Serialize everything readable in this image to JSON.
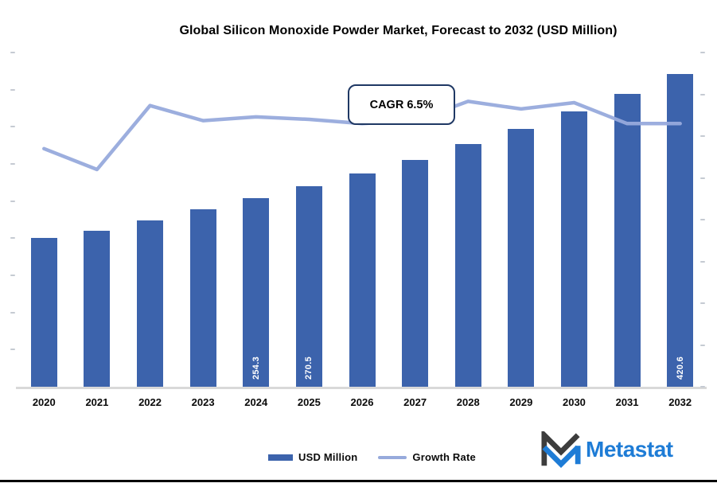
{
  "title": "Global Silicon Monoxide Powder Market, Forecast to 2032 (USD Million)",
  "callout": "CAGR 6.5%",
  "legend": {
    "bar_label": "USD Million",
    "line_label": "Growth Rate"
  },
  "brand": "Metastat",
  "colors": {
    "bar": "#3C63AC",
    "line": "#97AADC",
    "callout_border": "#1F3864",
    "axis": "#D9D9D9",
    "brand_blue": "#1E7CD6",
    "brand_dark": "#3D3D3D",
    "bar_label_text": "#FFFFFF"
  },
  "chart_data": {
    "type": "bar",
    "subtype": "combo-bar-line-dual-axis",
    "title": "Global Silicon Monoxide Powder Market, Forecast to 2032 (USD Million)",
    "categories": [
      "2020",
      "2021",
      "2022",
      "2023",
      "2024",
      "2025",
      "2026",
      "2027",
      "2028",
      "2029",
      "2030",
      "2031",
      "2032"
    ],
    "series": [
      {
        "name": "USD Million",
        "type": "bar",
        "axis": "primary",
        "values": [
          200,
          210,
          224,
          239,
          254.3,
          270.5,
          287,
          305,
          327,
          347,
          371,
          394,
          420.6
        ],
        "data_labels": [
          "",
          "",
          "",
          "",
          "254.3",
          "270.5",
          "",
          "",
          "",
          "",
          "",
          "",
          "420.6"
        ]
      },
      {
        "name": "Growth Rate",
        "type": "line",
        "axis": "secondary",
        "values": [
          5.7,
          5.2,
          6.73,
          6.37,
          6.46,
          6.4,
          6.3,
          6.37,
          6.83,
          6.65,
          6.8,
          6.3,
          6.3
        ]
      }
    ],
    "annotation": "CAGR 6.5%",
    "primary_axis": {
      "ylim": [
        0,
        450
      ],
      "tick_step": 50,
      "tick_labels_legible": false
    },
    "secondary_axis": {
      "ylim": [
        0,
        8
      ],
      "tick_step": 1,
      "tick_labels_legible": false
    },
    "xlabel": "",
    "ylabel": "",
    "gridlines": false,
    "legend_position": "bottom-center",
    "legend_entries": [
      "USD Million",
      "Growth Rate"
    ]
  }
}
